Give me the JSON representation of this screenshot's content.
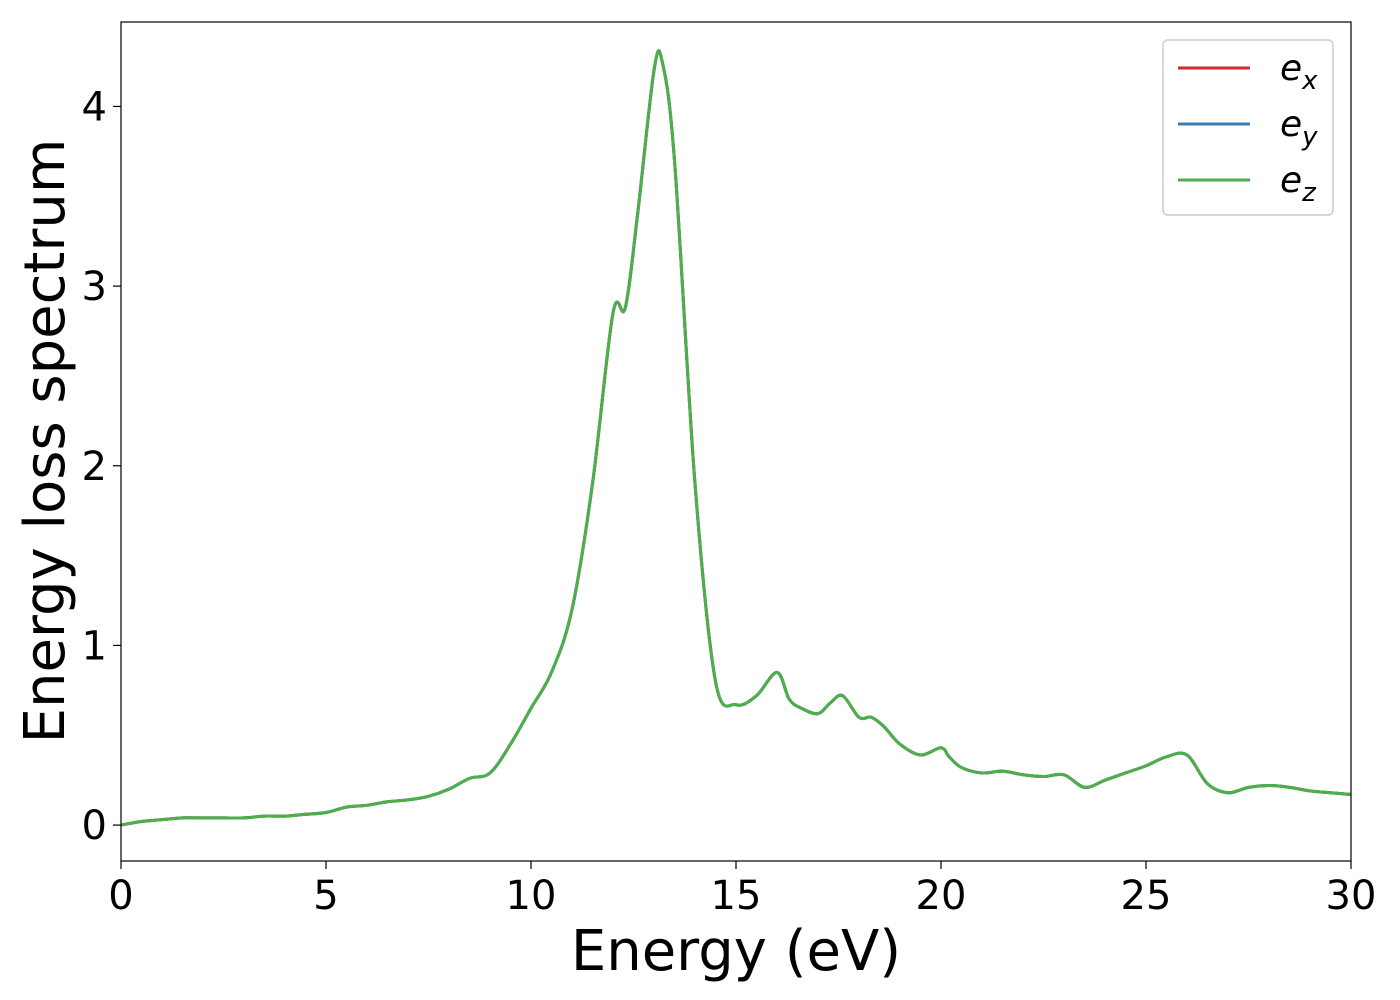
{
  "chart_data": {
    "type": "line",
    "title": "",
    "xlabel": "Energy (eV)",
    "ylabel": "Energy loss spectrum",
    "xlim": [
      0,
      30
    ],
    "ylim": [
      -0.2,
      4.47
    ],
    "xticks": [
      0,
      5,
      10,
      15,
      20,
      25,
      30
    ],
    "yticks": [
      0,
      1,
      2,
      3,
      4
    ],
    "grid": false,
    "legend": {
      "placement": "top-right"
    },
    "x": [
      0,
      0.5,
      1,
      1.5,
      2,
      2.5,
      3,
      3.5,
      4,
      4.5,
      5,
      5.5,
      6,
      6.5,
      7,
      7.5,
      8,
      8.5,
      9,
      9.5,
      10,
      10.5,
      11,
      11.5,
      12,
      12.3,
      12.6,
      13,
      13.2,
      13.5,
      14,
      14.5,
      15,
      15.5,
      16,
      16.3,
      16.6,
      17,
      17.3,
      17.6,
      18,
      18.3,
      18.6,
      19,
      19.5,
      20,
      20.2,
      20.5,
      21,
      21.5,
      22,
      22.5,
      23,
      23.5,
      24,
      24.5,
      25,
      25.5,
      26,
      26.5,
      27,
      27.5,
      28,
      28.5,
      29,
      29.5,
      30
    ],
    "series": [
      {
        "name": "e",
        "subscript": "x",
        "color": "#d62728",
        "values": [
          0,
          0.02,
          0.03,
          0.04,
          0.04,
          0.04,
          0.04,
          0.05,
          0.05,
          0.06,
          0.07,
          0.1,
          0.11,
          0.13,
          0.14,
          0.16,
          0.2,
          0.26,
          0.29,
          0.45,
          0.65,
          0.85,
          1.2,
          1.9,
          2.85,
          2.88,
          3.4,
          4.2,
          4.25,
          3.7,
          1.9,
          0.8,
          0.67,
          0.72,
          0.85,
          0.7,
          0.65,
          0.62,
          0.68,
          0.72,
          0.6,
          0.6,
          0.55,
          0.45,
          0.39,
          0.43,
          0.38,
          0.32,
          0.29,
          0.3,
          0.28,
          0.27,
          0.28,
          0.21,
          0.25,
          0.29,
          0.33,
          0.38,
          0.39,
          0.23,
          0.18,
          0.21,
          0.22,
          0.21,
          0.19,
          0.18,
          0.17
        ]
      },
      {
        "name": "e",
        "subscript": "y",
        "color": "#377eb8",
        "values": [
          0,
          0.02,
          0.03,
          0.04,
          0.04,
          0.04,
          0.04,
          0.05,
          0.05,
          0.06,
          0.07,
          0.1,
          0.11,
          0.13,
          0.14,
          0.16,
          0.2,
          0.26,
          0.29,
          0.45,
          0.65,
          0.85,
          1.2,
          1.9,
          2.85,
          2.88,
          3.4,
          4.2,
          4.25,
          3.7,
          1.9,
          0.8,
          0.67,
          0.72,
          0.85,
          0.7,
          0.65,
          0.62,
          0.68,
          0.72,
          0.6,
          0.6,
          0.55,
          0.45,
          0.39,
          0.43,
          0.38,
          0.32,
          0.29,
          0.3,
          0.28,
          0.27,
          0.28,
          0.21,
          0.25,
          0.29,
          0.33,
          0.38,
          0.39,
          0.23,
          0.18,
          0.21,
          0.22,
          0.21,
          0.19,
          0.18,
          0.17
        ]
      },
      {
        "name": "e",
        "subscript": "z",
        "color": "#4daf4a",
        "values": [
          0,
          0.02,
          0.03,
          0.04,
          0.04,
          0.04,
          0.04,
          0.05,
          0.05,
          0.06,
          0.07,
          0.1,
          0.11,
          0.13,
          0.14,
          0.16,
          0.2,
          0.26,
          0.29,
          0.45,
          0.65,
          0.85,
          1.2,
          1.9,
          2.85,
          2.88,
          3.4,
          4.2,
          4.25,
          3.7,
          1.9,
          0.8,
          0.67,
          0.72,
          0.85,
          0.7,
          0.65,
          0.62,
          0.68,
          0.72,
          0.6,
          0.6,
          0.55,
          0.45,
          0.39,
          0.43,
          0.38,
          0.32,
          0.29,
          0.3,
          0.28,
          0.27,
          0.28,
          0.21,
          0.25,
          0.29,
          0.33,
          0.38,
          0.39,
          0.23,
          0.18,
          0.21,
          0.22,
          0.21,
          0.19,
          0.18,
          0.17
        ]
      }
    ]
  }
}
